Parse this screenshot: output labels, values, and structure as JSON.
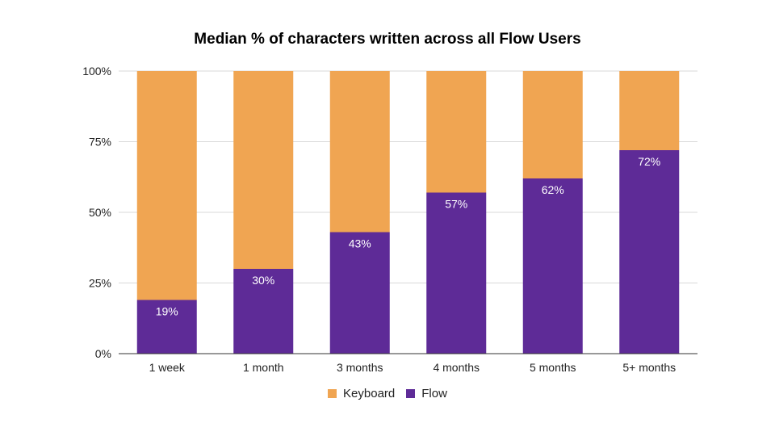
{
  "chart_data": {
    "type": "bar",
    "stacked": true,
    "title": "Median % of characters written across all Flow Users",
    "xlabel": "",
    "ylabel": "",
    "categories": [
      "1 week",
      "1 month",
      "3 months",
      "4 months",
      "5 months",
      "5+ months"
    ],
    "series": [
      {
        "name": "Flow",
        "values": [
          19,
          30,
          43,
          57,
          62,
          72
        ],
        "color": "#5e2b97",
        "labels": [
          "19%",
          "30%",
          "43%",
          "57%",
          "62%",
          "72%"
        ]
      },
      {
        "name": "Keyboard",
        "values": [
          81,
          70,
          57,
          43,
          38,
          28
        ],
        "color": "#f0a552"
      }
    ],
    "ylim": [
      0,
      100
    ],
    "yticks": [
      "0%",
      "25%",
      "50%",
      "75%",
      "100%"
    ],
    "grid": true,
    "legend": "bottom"
  }
}
